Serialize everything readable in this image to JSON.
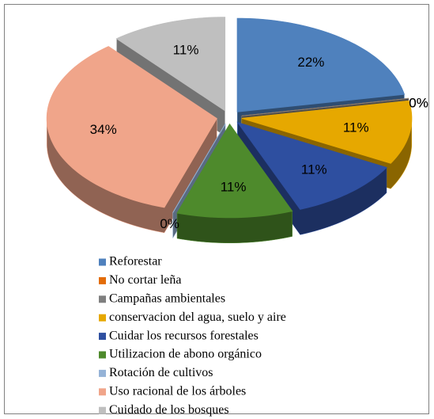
{
  "chart_data": {
    "type": "pie3d",
    "categories": [
      "Reforestar",
      "No cortar leña",
      "Campañas ambientales",
      "conservacion del agua, suelo y aire",
      "Cuidar los recursos forestales",
      "Utilizacion de abono orgánico",
      "Rotación de cultivos",
      "Uso racional de los árboles",
      "Cuidado de los bosques"
    ],
    "values": [
      22,
      0,
      0,
      11,
      11,
      11,
      0,
      34,
      11
    ],
    "value_labels": [
      "22%",
      "0%",
      "0%",
      "11%",
      "11%",
      "11%",
      "0%",
      "34%",
      "11%"
    ],
    "colors": [
      "#4f81bd",
      "#e36c09",
      "#7f7f7f",
      "#e6a800",
      "#2e4fa0",
      "#4e8a2c",
      "#95b3d7",
      "#f0a58a",
      "#bfbfbf"
    ],
    "legend": "bottom"
  }
}
